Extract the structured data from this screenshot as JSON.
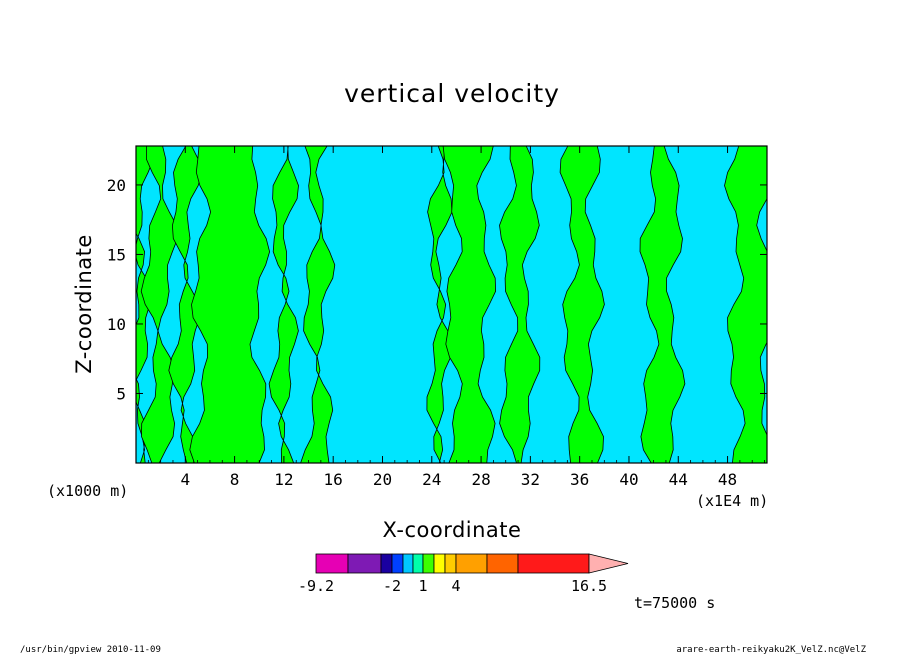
{
  "chart_data": {
    "type": "heatmap",
    "title": "vertical velocity",
    "xlabel": "X-coordinate",
    "ylabel": "Z-coordinate",
    "x_unit_label": "(x1000 m)",
    "x_scale_label": "(x1E4 m)",
    "xlim": [
      0,
      51.2
    ],
    "ylim": [
      0,
      22.8
    ],
    "x_ticks": [
      "4",
      "8",
      "12",
      "16",
      "20",
      "24",
      "28",
      "32",
      "36",
      "40",
      "44",
      "48"
    ],
    "y_ticks": [
      "5",
      "10",
      "15",
      "20"
    ],
    "time_label": "t=75000 s",
    "field_colors": {
      "positive": "#00ff00",
      "negative": "#00e5ff",
      "contour": "#000000"
    },
    "colorbar": {
      "labels": [
        "-9.2",
        "-2",
        "1",
        "4",
        "16.5"
      ],
      "colors": [
        "#e600b4",
        "#7e1ab4",
        "#1a00a0",
        "#0040ff",
        "#00c8ff",
        "#00ffaa",
        "#3cff00",
        "#ffff00",
        "#ffcc00",
        "#ffa000",
        "#ff6400",
        "#ff1a1a",
        "#ff7070",
        "#ffb0b0"
      ]
    },
    "columns": [
      {
        "x": 0.0,
        "sign": "pos"
      },
      {
        "x": 0.6,
        "sign": "neg"
      },
      {
        "x": 1.2,
        "sign": "pos"
      },
      {
        "x": 2.6,
        "sign": "neg"
      },
      {
        "x": 3.5,
        "sign": "pos"
      },
      {
        "x": 4.5,
        "sign": "neg"
      },
      {
        "x": 5.2,
        "sign": "pos"
      },
      {
        "x": 10.0,
        "sign": "neg"
      },
      {
        "x": 11.6,
        "sign": "pos"
      },
      {
        "x": 12.4,
        "sign": "neg"
      },
      {
        "x": 14.2,
        "sign": "pos"
      },
      {
        "x": 15.3,
        "sign": "neg"
      },
      {
        "x": 24.3,
        "sign": "pos"
      },
      {
        "x": 24.9,
        "sign": "neg"
      },
      {
        "x": 25.7,
        "sign": "pos"
      },
      {
        "x": 28.4,
        "sign": "neg"
      },
      {
        "x": 30.2,
        "sign": "pos"
      },
      {
        "x": 32.0,
        "sign": "neg"
      },
      {
        "x": 35.2,
        "sign": "pos"
      },
      {
        "x": 37.2,
        "sign": "neg"
      },
      {
        "x": 41.6,
        "sign": "pos"
      },
      {
        "x": 43.7,
        "sign": "neg"
      },
      {
        "x": 48.6,
        "sign": "pos"
      },
      {
        "x": 51.2,
        "sign": "end"
      }
    ]
  },
  "footer": {
    "left": "/usr/bin/gpview   2010-11-09",
    "right": "arare-earth-reikyaku2K_VelZ.nc@VelZ"
  }
}
